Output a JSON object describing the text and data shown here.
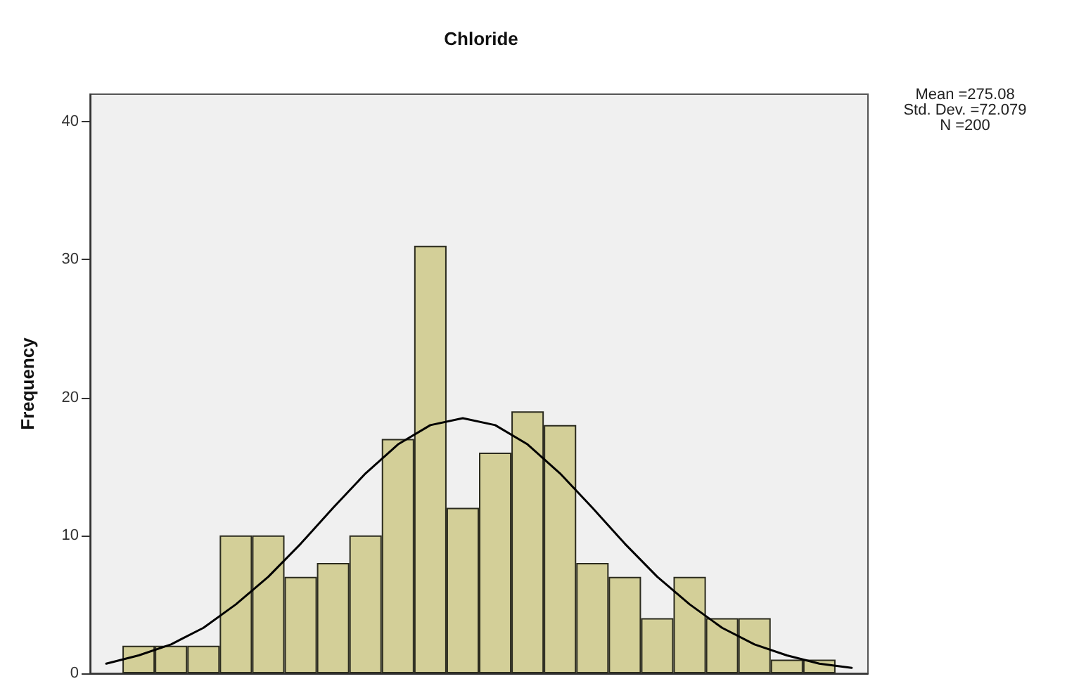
{
  "chart_data": {
    "type": "bar",
    "title": "Chloride",
    "ylabel": "Frequency",
    "categories": [
      null,
      null,
      null,
      null,
      null,
      null,
      null,
      null,
      null,
      null,
      null,
      null,
      null,
      null,
      null,
      null,
      null,
      null,
      null,
      null,
      null,
      null,
      null,
      null
    ],
    "series": [
      {
        "color": "#d3cf98",
        "values": [
          null,
          2,
          2,
          2,
          10,
          10,
          7,
          8,
          10,
          17,
          31,
          12,
          16,
          19,
          18,
          8,
          7,
          4,
          7,
          4,
          4,
          1,
          1,
          null
        ]
      },
      {
        "type": "line",
        "color": "#000000",
        "marker": "none",
        "line_style": "solid",
        "values": [
          0.7,
          1.3,
          2.1,
          3.3,
          5.0,
          7.0,
          9.4,
          12.0,
          14.5,
          16.6,
          18.0,
          18.5,
          18.0,
          16.6,
          14.5,
          12.0,
          9.4,
          7.0,
          5.0,
          3.3,
          2.1,
          1.3,
          0.7,
          0.4
        ]
      }
    ],
    "ylim": [
      0,
      42
    ],
    "yticks": [
      0,
      10,
      20,
      30,
      40
    ],
    "grid": false,
    "annotations": [
      "Mean =275.08",
      "Std. Dev. =72.079",
      "N =200"
    ]
  }
}
